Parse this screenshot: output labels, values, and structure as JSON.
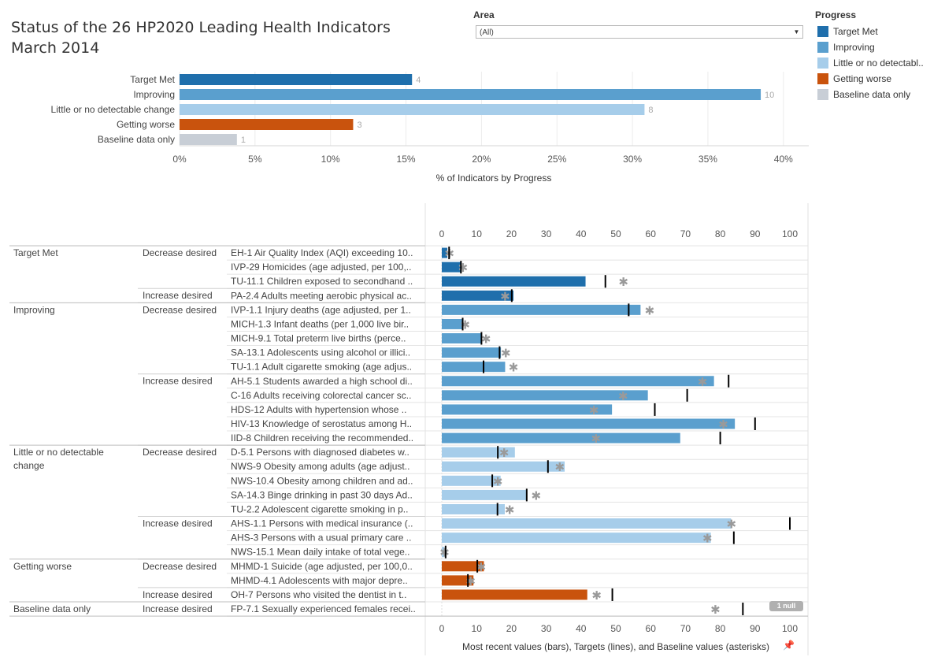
{
  "title": {
    "line1": "Status of the 26 HP2020 Leading Health Indicators",
    "line2": "March 2014"
  },
  "filter": {
    "label": "Area",
    "value": "(All)"
  },
  "legend": {
    "title": "Progress",
    "items": [
      {
        "label": "Target Met",
        "color": "#1f6fac"
      },
      {
        "label": "Improving",
        "color": "#5a9fce"
      },
      {
        "label": "Little or no detectabl..",
        "color": "#a6cdea"
      },
      {
        "label": "Getting worse",
        "color": "#c9530d"
      },
      {
        "label": "Baseline data only",
        "color": "#c8ced6"
      }
    ]
  },
  "null_badge": "1 null",
  "chart_data": [
    {
      "type": "bar",
      "orientation": "horizontal",
      "categories": [
        "Target Met",
        "Improving",
        "Little or no detectable change",
        "Getting worse",
        "Baseline data only"
      ],
      "values": [
        15.4,
        38.5,
        30.8,
        11.5,
        3.8
      ],
      "labels": [
        "4",
        "10",
        "8",
        "3",
        "1"
      ],
      "colors": [
        "#1f6fac",
        "#5a9fce",
        "#a6cdea",
        "#c9530d",
        "#c8ced6"
      ],
      "xlabel": "% of Indicators by Progress",
      "xlim": [
        0,
        42
      ],
      "ticks": [
        0,
        5,
        10,
        15,
        20,
        25,
        30,
        35,
        40
      ],
      "tick_labels": [
        "0%",
        "5%",
        "10%",
        "15%",
        "20%",
        "25%",
        "30%",
        "35%",
        "40%"
      ],
      "grid": true
    },
    {
      "type": "bar",
      "orientation": "horizontal",
      "xlabel": "Most recent values (bars), Targets (lines), and Baseline values (asterisks)",
      "xlim": [
        0,
        105
      ],
      "ticks": [
        0,
        10,
        20,
        30,
        40,
        50,
        60,
        70,
        80,
        90,
        100
      ],
      "groups": [
        {
          "progress": "Target Met",
          "color": "#1f6fac",
          "direction": "Decrease desired"
        },
        {
          "progress": "Target Met",
          "color": "#1f6fac",
          "direction": "Increase desired"
        },
        {
          "progress": "Improving",
          "color": "#5a9fce",
          "direction": "Decrease desired"
        },
        {
          "progress": "Improving",
          "color": "#5a9fce",
          "direction": "Increase desired"
        },
        {
          "progress": "Little or no detectable change",
          "color": "#a6cdea",
          "direction": "Decrease desired"
        },
        {
          "progress": "Little or no detectable change",
          "color": "#a6cdea",
          "direction": "Increase desired"
        },
        {
          "progress": "Getting worse",
          "color": "#c9530d",
          "direction": "Decrease desired"
        },
        {
          "progress": "Getting worse",
          "color": "#c9530d",
          "direction": "Increase desired"
        },
        {
          "progress": "Baseline data only",
          "color": "#c8ced6",
          "direction": "Increase desired"
        }
      ],
      "rows": [
        {
          "group": 0,
          "label": "EH-1  Air Quality Index (AQI) exceeding 10..",
          "value": 1.6,
          "target": 2.1,
          "baseline": 2.2
        },
        {
          "group": 0,
          "label": "IVP-29  Homicides (age adjusted, per 100,..",
          "value": 5.5,
          "target": 5.5,
          "baseline": 6.1
        },
        {
          "group": 0,
          "label": "TU-11.1  Children exposed to secondhand ..",
          "value": 41.3,
          "target": 47.0,
          "baseline": 52.2
        },
        {
          "group": 1,
          "label": "PA-2.4  Adults meeting aerobic physical ac..",
          "value": 20.6,
          "target": 20.1,
          "baseline": 18.2
        },
        {
          "group": 2,
          "label": "IVP-1.1  Injury deaths (age adjusted, per 1..",
          "value": 57.1,
          "target": 53.7,
          "baseline": 59.7
        },
        {
          "group": 2,
          "label": "MICH-1.3  Infant deaths (per 1,000 live bir..",
          "value": 6.1,
          "target": 6.0,
          "baseline": 6.7
        },
        {
          "group": 2,
          "label": "MICH-9.1  Total preterm live births (perce..",
          "value": 11.5,
          "target": 11.4,
          "baseline": 12.7
        },
        {
          "group": 2,
          "label": "SA-13.1  Adolescents using alcohol or illici..",
          "value": 17.0,
          "target": 16.6,
          "baseline": 18.4
        },
        {
          "group": 2,
          "label": "TU-1.1  Adult cigarette smoking (age adjus..",
          "value": 18.2,
          "target": 12.0,
          "baseline": 20.6
        },
        {
          "group": 3,
          "label": "AH-5.1  Students awarded a high school di..",
          "value": 78.2,
          "target": 82.4,
          "baseline": 74.9
        },
        {
          "group": 3,
          "label": "C-16  Adults receiving colorectal cancer sc..",
          "value": 59.2,
          "target": 70.5,
          "baseline": 52.1
        },
        {
          "group": 3,
          "label": "HDS-12  Adults with hypertension whose ..",
          "value": 48.9,
          "target": 61.2,
          "baseline": 43.7
        },
        {
          "group": 3,
          "label": "HIV-13  Knowledge of serostatus among H..",
          "value": 84.2,
          "target": 90.0,
          "baseline": 80.9
        },
        {
          "group": 3,
          "label": "IID-8  Children receiving the recommended..",
          "value": 68.5,
          "target": 80.0,
          "baseline": 44.3
        },
        {
          "group": 4,
          "label": "D-5.1  Persons with diagnosed diabetes w..",
          "value": 21.0,
          "target": 16.1,
          "baseline": 17.9
        },
        {
          "group": 4,
          "label": "NWS-9  Obesity among adults (age adjust..",
          "value": 35.3,
          "target": 30.5,
          "baseline": 33.9
        },
        {
          "group": 4,
          "label": "NWS-10.4  Obesity among children and ad..",
          "value": 16.9,
          "target": 14.5,
          "baseline": 16.1
        },
        {
          "group": 4,
          "label": "SA-14.3  Binge drinking in past 30 days Ad..",
          "value": 24.5,
          "target": 24.4,
          "baseline": 27.1
        },
        {
          "group": 4,
          "label": "TU-2.2  Adolescent cigarette smoking in p..",
          "value": 18.1,
          "target": 16.0,
          "baseline": 19.5
        },
        {
          "group": 5,
          "label": "AHS-1.1  Persons with medical insurance (..",
          "value": 83.1,
          "target": 100,
          "baseline": 83.2
        },
        {
          "group": 5,
          "label": "AHS-3  Persons with a usual primary care ..",
          "value": 77.3,
          "target": 83.9,
          "baseline": 76.3
        },
        {
          "group": 5,
          "label": "NWS-15.1  Mean daily intake of total vege..",
          "value": 0.8,
          "target": 1.1,
          "baseline": 0.8
        },
        {
          "group": 6,
          "label": "MHMD-1  Suicide (age adjusted, per 100,0..",
          "value": 12.1,
          "target": 10.2,
          "baseline": 11.3
        },
        {
          "group": 6,
          "label": "MHMD-4.1  Adolescents with major depre..",
          "value": 9.1,
          "target": 7.5,
          "baseline": 8.3
        },
        {
          "group": 7,
          "label": "OH-7  Persons who visited the dentist in t..",
          "value": 41.8,
          "target": 49.0,
          "baseline": 44.5
        },
        {
          "group": 8,
          "label": "FP-7.1  Sexually experienced females recei..",
          "value": null,
          "target": 86.5,
          "baseline": 78.6
        }
      ]
    }
  ]
}
